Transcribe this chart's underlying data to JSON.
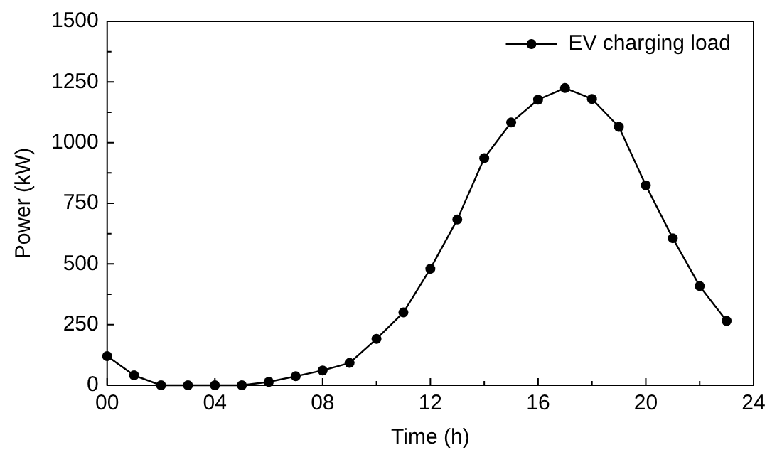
{
  "chart_data": {
    "type": "line",
    "xlabel": "Time (h)",
    "ylabel": "Power (kW)",
    "x": [
      0,
      1,
      2,
      3,
      4,
      5,
      6,
      7,
      8,
      9,
      10,
      11,
      12,
      13,
      14,
      15,
      16,
      17,
      18,
      19,
      20,
      21,
      22,
      23
    ],
    "series": [
      {
        "name": "EV charging load",
        "color": "#000000",
        "values": [
          120,
          41,
          0,
          0,
          0,
          0,
          14,
          37,
          61,
          92,
          191,
          300,
          480,
          683,
          936,
          1083,
          1177,
          1225,
          1180,
          1065,
          824,
          606,
          409,
          265
        ]
      }
    ],
    "xlim": [
      0,
      24
    ],
    "xticks": [
      {
        "value": 0,
        "label": "00"
      },
      {
        "value": 2,
        "label": null
      },
      {
        "value": 4,
        "label": "04"
      },
      {
        "value": 6,
        "label": null
      },
      {
        "value": 8,
        "label": "08"
      },
      {
        "value": 10,
        "label": null
      },
      12,
      {
        "value": 14,
        "label": null
      },
      16,
      {
        "value": 18,
        "label": null
      },
      20,
      {
        "value": 22,
        "label": null
      },
      24
    ],
    "ylim": [
      0,
      1500
    ],
    "yticks": [
      0,
      {
        "value": 125,
        "label": null
      },
      250,
      {
        "value": 375,
        "label": null
      },
      500,
      {
        "value": 625,
        "label": null
      },
      750,
      {
        "value": 875,
        "label": null
      },
      1000,
      {
        "value": 1125,
        "label": null
      },
      1250,
      {
        "value": 1375,
        "label": null
      },
      1500
    ],
    "grid": false,
    "legend": "top right",
    "marker": "circle",
    "line_style": "solid"
  }
}
